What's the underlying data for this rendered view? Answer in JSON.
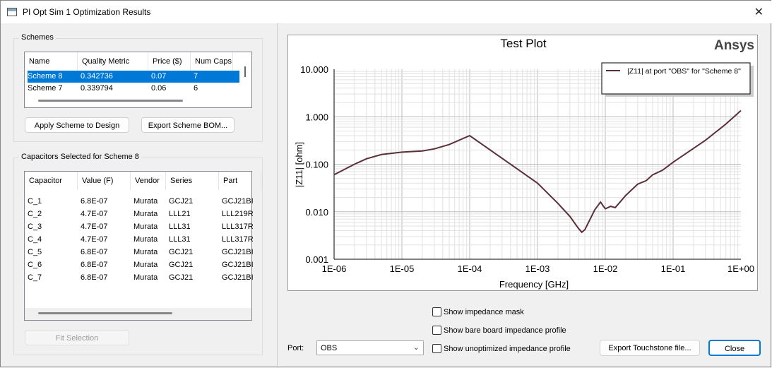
{
  "window": {
    "title": "PI Opt Sim 1 Optimization Results"
  },
  "schemes": {
    "group_label": "Schemes",
    "columns": [
      "Name",
      "Quality Metric",
      "Price ($)",
      "Num Caps"
    ],
    "rows": [
      [
        "Scheme 8",
        "0.342736",
        "0.07",
        "7"
      ],
      [
        "Scheme 7",
        "0.339794",
        "0.06",
        "6"
      ]
    ],
    "apply_label": "Apply Scheme to Design",
    "export_label": "Export Scheme BOM..."
  },
  "capacitors": {
    "group_label": "Capacitors Selected for Scheme 8",
    "columns": [
      "Capacitor",
      "Value (F)",
      "Vendor",
      "Series",
      "Part"
    ],
    "rows": [
      [
        "C_1",
        "6.8E-07",
        "Murata",
        "GCJ21",
        "GCJ21BI"
      ],
      [
        "C_2",
        "4.7E-07",
        "Murata",
        "LLL21",
        "LLL219R"
      ],
      [
        "C_3",
        "4.7E-07",
        "Murata",
        "LLL31",
        "LLL317R"
      ],
      [
        "C_4",
        "4.7E-07",
        "Murata",
        "LLL31",
        "LLL317R"
      ],
      [
        "C_5",
        "6.8E-07",
        "Murata",
        "GCJ21",
        "GCJ21BI"
      ],
      [
        "C_6",
        "6.8E-07",
        "Murata",
        "GCJ21",
        "GCJ21BI"
      ],
      [
        "C_7",
        "6.8E-07",
        "Murata",
        "GCJ21",
        "GCJ21BI"
      ]
    ],
    "fit_label": "Fit Selection"
  },
  "plot": {
    "brand": "Ansys"
  },
  "chart_data": {
    "type": "line",
    "title": "Test Plot",
    "xlabel": "Frequency [GHz]",
    "ylabel": "|Z11| [ohm]",
    "xscale": "log",
    "yscale": "log",
    "xlim": [
      1e-06,
      1
    ],
    "ylim": [
      0.001,
      10
    ],
    "grid": true,
    "legend_position": "top-right",
    "xticks": [
      "1E-06",
      "1E-05",
      "1E-04",
      "1E-03",
      "1E-02",
      "1E-01",
      "1E+00"
    ],
    "yticks": [
      "10.000",
      "1.000",
      "0.100",
      "0.010",
      "0.001"
    ],
    "series": [
      {
        "name": "|Z11| at port \"OBS\" for \"Scheme 8\"",
        "color": "#5a2f38",
        "x": [
          1e-06,
          2e-06,
          3e-06,
          5e-06,
          1e-05,
          2e-05,
          3e-05,
          5e-05,
          0.0001,
          0.001,
          0.002,
          0.003,
          0.004,
          0.0045,
          0.005,
          0.007,
          0.0085,
          0.01,
          0.012,
          0.014,
          0.02,
          0.03,
          0.04,
          0.05,
          0.07,
          0.1,
          0.3,
          0.6,
          1
        ],
        "y": [
          0.06,
          0.1,
          0.13,
          0.16,
          0.18,
          0.19,
          0.21,
          0.26,
          0.4,
          0.04,
          0.015,
          0.008,
          0.0045,
          0.0037,
          0.0042,
          0.011,
          0.016,
          0.0115,
          0.013,
          0.0122,
          0.022,
          0.038,
          0.045,
          0.06,
          0.075,
          0.11,
          0.32,
          0.7,
          1.35
        ]
      }
    ]
  },
  "controls": {
    "mask_label": "Show impedance mask",
    "bare_label": "Show bare board impedance profile",
    "unopt_label": "Show unoptimized impedance profile",
    "port_label": "Port:",
    "port_value": "OBS",
    "export_touchstone": "Export Touchstone file...",
    "close": "Close"
  }
}
